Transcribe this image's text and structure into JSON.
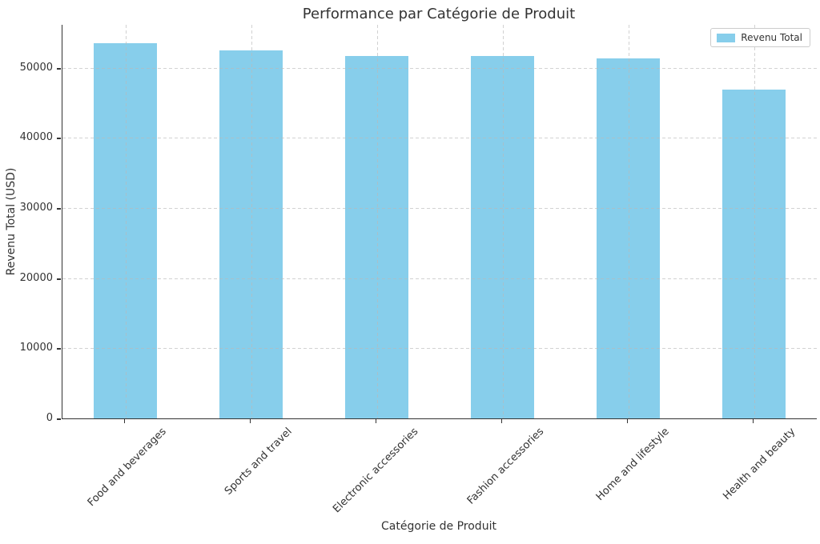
{
  "chart_data": {
    "type": "bar",
    "title": "Performance par Catégorie de Produit",
    "xlabel": "Catégorie de Produit",
    "ylabel": "Revenu Total (USD)",
    "categories": [
      "Food and beverages",
      "Sports and travel",
      "Electronic accessories",
      "Fashion accessories",
      "Home and lifestyle",
      "Health and beauty"
    ],
    "series": [
      {
        "name": "Revenu Total",
        "values": [
          53471,
          52498,
          51750,
          51720,
          51297,
          46851
        ]
      }
    ],
    "ylim": [
      0,
      56145
    ],
    "yticks": [
      0,
      10000,
      20000,
      30000,
      40000,
      50000
    ],
    "grid": "dashed, horizontal and vertical, drawn over bars",
    "legend_position": "upper right",
    "x_tick_rotation_deg": 45,
    "colors": {
      "bar": "#87CEEB",
      "text": "#333333",
      "spine": "#333333",
      "grid": "#b9b9b9",
      "legend_border": "#cccccc",
      "background": "#ffffff"
    }
  }
}
